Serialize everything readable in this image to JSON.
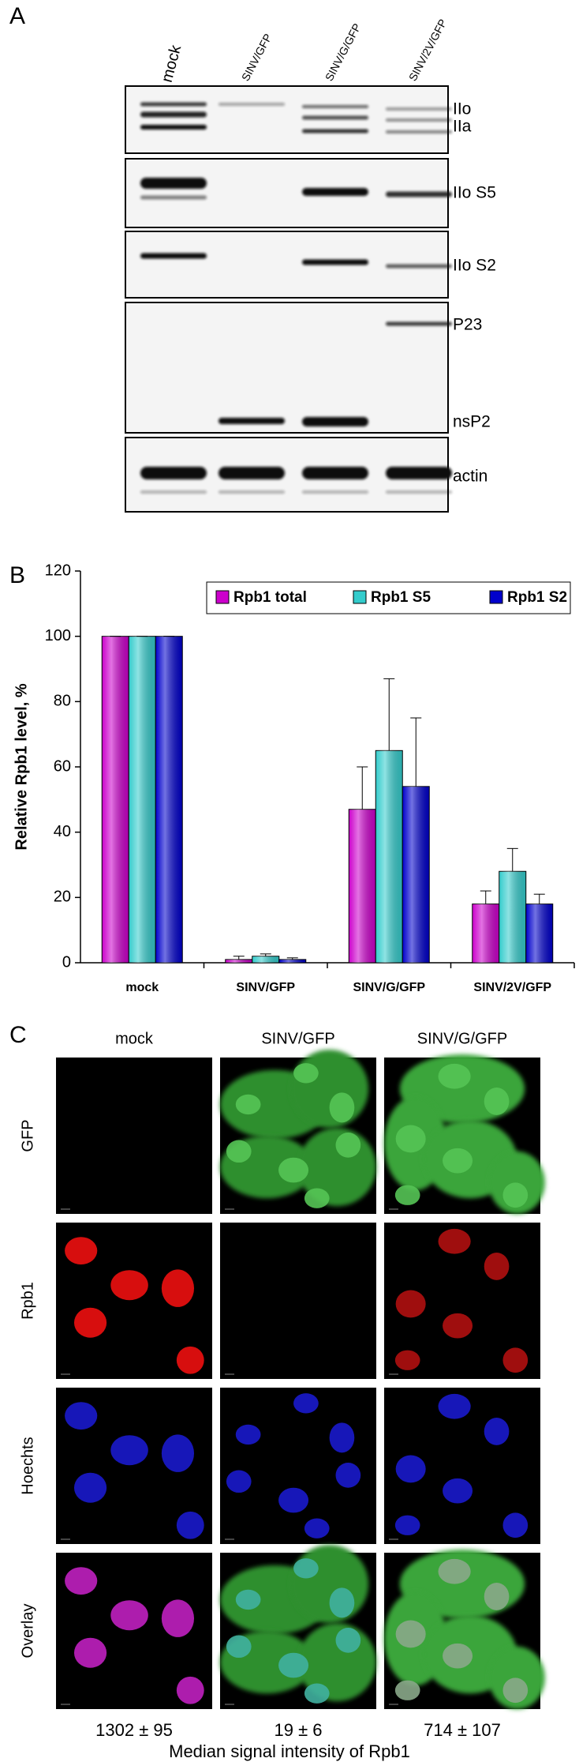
{
  "panel_a": {
    "label": "A",
    "lanes": [
      "mock",
      "SINV/GFP",
      "SINV/G/GFP",
      "SINV/2V/GFP"
    ],
    "band_labels": [
      "IIo",
      "IIa",
      "IIo S5",
      "IIo S2",
      "P23",
      "nsP2",
      "actin"
    ]
  },
  "chart_data": {
    "type": "bar",
    "panel_label": "B",
    "y_label": "Relative Rpb1 level, %",
    "categories": [
      "mock",
      "SINV/GFP",
      "SINV/G/GFP",
      "SINV/2V/GFP"
    ],
    "series": [
      {
        "name": "Rpb1 total",
        "color": "#cc00cc",
        "values": [
          100,
          1,
          47,
          18
        ],
        "errors": [
          0,
          1,
          13,
          4
        ]
      },
      {
        "name": "Rpb1 S5",
        "color": "#33cccc",
        "values": [
          100,
          2,
          65,
          28
        ],
        "errors": [
          0,
          0.7,
          22,
          7
        ]
      },
      {
        "name": "Rpb1 S2",
        "color": "#0000cc",
        "values": [
          100,
          1,
          54,
          18
        ],
        "errors": [
          0,
          0.5,
          21,
          3
        ]
      }
    ],
    "ylim": [
      0,
      120
    ],
    "yticks": [
      0,
      20,
      40,
      60,
      80,
      100,
      120
    ],
    "legend": "top-right",
    "grid": false
  },
  "panel_c": {
    "label": "C",
    "columns": [
      "mock",
      "SINV/GFP",
      "SINV/G/GFP"
    ],
    "rows": [
      "GFP",
      "Rpb1",
      "Hoechts",
      "Overlay"
    ],
    "intensities": [
      "1302 ± 95",
      "19 ± 6",
      "714 ± 107"
    ],
    "caption": "Median signal intensity of Rpb1"
  }
}
